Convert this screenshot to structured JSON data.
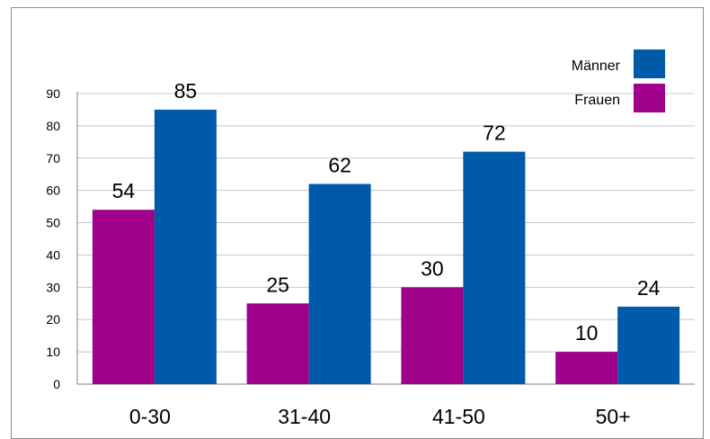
{
  "chart_data": {
    "type": "bar",
    "categories": [
      "0-30",
      "31-40",
      "41-50",
      "50+"
    ],
    "series": [
      {
        "name": "Frauen",
        "color": "#a0008a",
        "values": [
          54,
          25,
          30,
          10
        ]
      },
      {
        "name": "Männer",
        "color": "#005aaa",
        "values": [
          85,
          62,
          72,
          24
        ]
      }
    ],
    "ylim": [
      0,
      90
    ],
    "yticks": [
      0,
      10,
      20,
      30,
      40,
      50,
      60,
      70,
      80,
      90
    ],
    "grid": true,
    "legend_position": "top-right",
    "legend_order": [
      "Männer",
      "Frauen"
    ],
    "xlabel": "",
    "ylabel": ""
  }
}
